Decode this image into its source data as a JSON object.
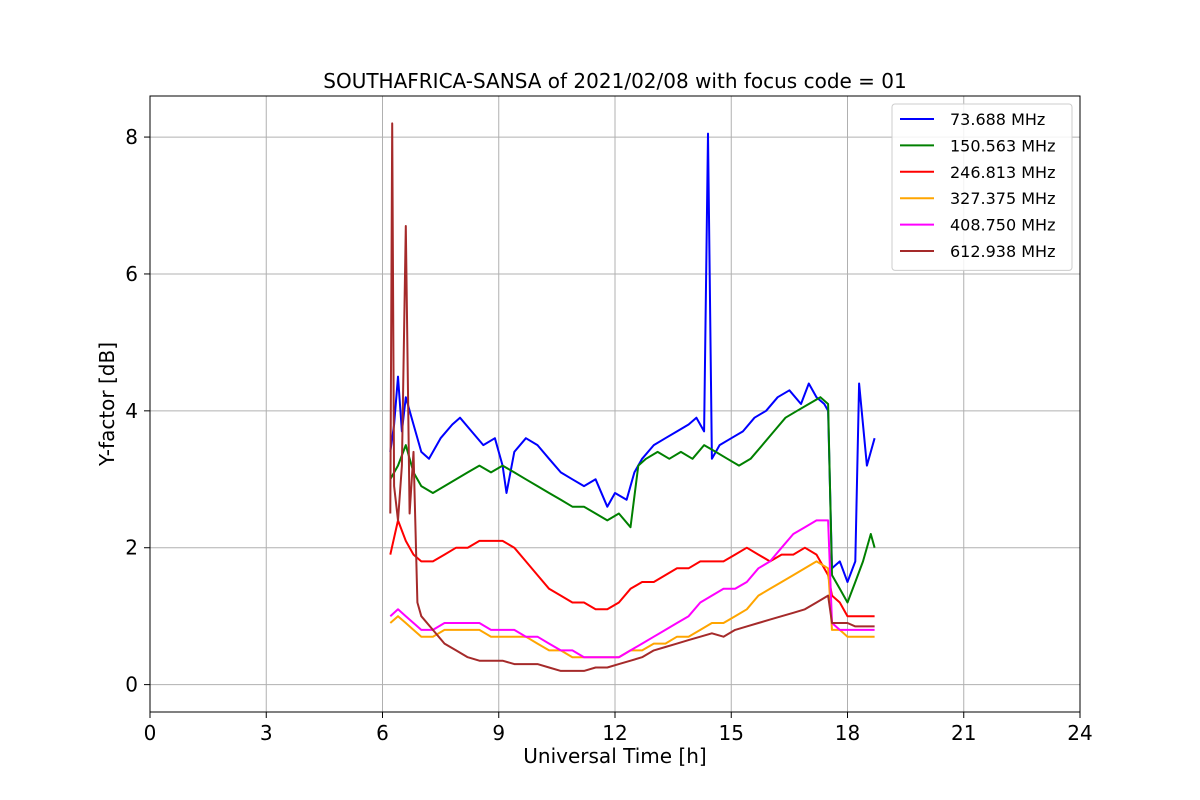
{
  "chart_data": {
    "type": "line",
    "title": "SOUTHAFRICA-SANSA of 2021/02/08 with focus code = 01",
    "xlabel": "Universal Time [h]",
    "ylabel": "Y-factor [dB]",
    "xlim": [
      0,
      24
    ],
    "ylim": [
      -0.4,
      8.6
    ],
    "xticks": [
      0,
      3,
      6,
      9,
      12,
      15,
      18,
      21,
      24
    ],
    "yticks": [
      0,
      2,
      4,
      6,
      8
    ],
    "xtick_labels": [
      "0",
      "3",
      "6",
      "9",
      "12",
      "15",
      "18",
      "21",
      "24"
    ],
    "ytick_labels": [
      "0",
      "2",
      "4",
      "6",
      "8"
    ],
    "grid": true,
    "legend_position": "top-right",
    "series": [
      {
        "name": " 73.688 MHz",
        "color": "#0000ff",
        "x": [
          6.2,
          6.3,
          6.4,
          6.5,
          6.6,
          6.8,
          7.0,
          7.2,
          7.5,
          7.8,
          8.0,
          8.3,
          8.6,
          8.9,
          9.1,
          9.2,
          9.4,
          9.7,
          10.0,
          10.3,
          10.6,
          10.9,
          11.2,
          11.5,
          11.8,
          12.0,
          12.3,
          12.5,
          12.7,
          13.0,
          13.3,
          13.6,
          13.9,
          14.1,
          14.3,
          14.4,
          14.5,
          14.7,
          15.0,
          15.3,
          15.6,
          15.9,
          16.2,
          16.5,
          16.8,
          17.0,
          17.2,
          17.4,
          17.5,
          17.6,
          17.8,
          18.0,
          18.2,
          18.3,
          18.5,
          18.7
        ],
        "y": [
          3.4,
          3.8,
          4.5,
          3.7,
          4.2,
          3.8,
          3.4,
          3.3,
          3.6,
          3.8,
          3.9,
          3.7,
          3.5,
          3.6,
          3.2,
          2.8,
          3.4,
          3.6,
          3.5,
          3.3,
          3.1,
          3.0,
          2.9,
          3.0,
          2.6,
          2.8,
          2.7,
          3.1,
          3.3,
          3.5,
          3.6,
          3.7,
          3.8,
          3.9,
          3.7,
          8.05,
          3.3,
          3.5,
          3.6,
          3.7,
          3.9,
          4.0,
          4.2,
          4.3,
          4.1,
          4.4,
          4.2,
          4.1,
          4.0,
          1.7,
          1.8,
          1.5,
          1.8,
          4.4,
          3.2,
          3.6
        ]
      },
      {
        "name": "150.563 MHz",
        "color": "#008000",
        "x": [
          6.2,
          6.4,
          6.6,
          6.8,
          7.0,
          7.3,
          7.6,
          7.9,
          8.2,
          8.5,
          8.8,
          9.1,
          9.4,
          9.7,
          10.0,
          10.3,
          10.6,
          10.9,
          11.2,
          11.5,
          11.8,
          12.1,
          12.4,
          12.6,
          12.8,
          13.1,
          13.4,
          13.7,
          14.0,
          14.3,
          14.6,
          14.9,
          15.2,
          15.5,
          15.8,
          16.1,
          16.4,
          16.7,
          17.0,
          17.3,
          17.5,
          17.6,
          17.8,
          18.0,
          18.2,
          18.4,
          18.6,
          18.7
        ],
        "y": [
          3.0,
          3.2,
          3.5,
          3.1,
          2.9,
          2.8,
          2.9,
          3.0,
          3.1,
          3.2,
          3.1,
          3.2,
          3.1,
          3.0,
          2.9,
          2.8,
          2.7,
          2.6,
          2.6,
          2.5,
          2.4,
          2.5,
          2.3,
          3.2,
          3.3,
          3.4,
          3.3,
          3.4,
          3.3,
          3.5,
          3.4,
          3.3,
          3.2,
          3.3,
          3.5,
          3.7,
          3.9,
          4.0,
          4.1,
          4.2,
          4.1,
          1.6,
          1.4,
          1.2,
          1.5,
          1.8,
          2.2,
          2.0
        ]
      },
      {
        "name": "246.813 MHz",
        "color": "#ff0000",
        "x": [
          6.2,
          6.4,
          6.6,
          6.8,
          7.0,
          7.3,
          7.6,
          7.9,
          8.2,
          8.5,
          8.8,
          9.1,
          9.4,
          9.7,
          10.0,
          10.3,
          10.6,
          10.9,
          11.2,
          11.5,
          11.8,
          12.1,
          12.4,
          12.7,
          13.0,
          13.3,
          13.6,
          13.9,
          14.2,
          14.5,
          14.8,
          15.1,
          15.4,
          15.7,
          16.0,
          16.3,
          16.6,
          16.9,
          17.2,
          17.5,
          17.6,
          17.8,
          18.0,
          18.2,
          18.4,
          18.7
        ],
        "y": [
          1.9,
          2.4,
          2.1,
          1.9,
          1.8,
          1.8,
          1.9,
          2.0,
          2.0,
          2.1,
          2.1,
          2.1,
          2.0,
          1.8,
          1.6,
          1.4,
          1.3,
          1.2,
          1.2,
          1.1,
          1.1,
          1.2,
          1.4,
          1.5,
          1.5,
          1.6,
          1.7,
          1.7,
          1.8,
          1.8,
          1.8,
          1.9,
          2.0,
          1.9,
          1.8,
          1.9,
          1.9,
          2.0,
          1.9,
          1.6,
          1.3,
          1.2,
          1.0,
          1.0,
          1.0,
          1.0
        ]
      },
      {
        "name": "327.375 MHz",
        "color": "#ffa500",
        "x": [
          6.2,
          6.4,
          6.6,
          6.8,
          7.0,
          7.3,
          7.6,
          7.9,
          8.2,
          8.5,
          8.8,
          9.1,
          9.4,
          9.7,
          10.0,
          10.3,
          10.6,
          10.9,
          11.2,
          11.5,
          11.8,
          12.1,
          12.4,
          12.7,
          13.0,
          13.3,
          13.6,
          13.9,
          14.2,
          14.5,
          14.8,
          15.1,
          15.4,
          15.7,
          16.0,
          16.3,
          16.6,
          16.9,
          17.2,
          17.5,
          17.6,
          17.8,
          18.0,
          18.2,
          18.4,
          18.7
        ],
        "y": [
          0.9,
          1.0,
          0.9,
          0.8,
          0.7,
          0.7,
          0.8,
          0.8,
          0.8,
          0.8,
          0.7,
          0.7,
          0.7,
          0.7,
          0.6,
          0.5,
          0.5,
          0.4,
          0.4,
          0.4,
          0.4,
          0.4,
          0.5,
          0.5,
          0.6,
          0.6,
          0.7,
          0.7,
          0.8,
          0.9,
          0.9,
          1.0,
          1.1,
          1.3,
          1.4,
          1.5,
          1.6,
          1.7,
          1.8,
          1.7,
          0.8,
          0.8,
          0.7,
          0.7,
          0.7,
          0.7
        ]
      },
      {
        "name": "408.750 MHz",
        "color": "#ff00ff",
        "x": [
          6.2,
          6.4,
          6.6,
          6.8,
          7.0,
          7.3,
          7.6,
          7.9,
          8.2,
          8.5,
          8.8,
          9.1,
          9.4,
          9.7,
          10.0,
          10.3,
          10.6,
          10.9,
          11.2,
          11.5,
          11.8,
          12.1,
          12.4,
          12.7,
          13.0,
          13.3,
          13.6,
          13.9,
          14.2,
          14.5,
          14.8,
          15.1,
          15.4,
          15.7,
          16.0,
          16.3,
          16.6,
          16.9,
          17.2,
          17.5,
          17.6,
          17.8,
          18.0,
          18.2,
          18.4,
          18.7
        ],
        "y": [
          1.0,
          1.1,
          1.0,
          0.9,
          0.8,
          0.8,
          0.9,
          0.9,
          0.9,
          0.9,
          0.8,
          0.8,
          0.8,
          0.7,
          0.7,
          0.6,
          0.5,
          0.5,
          0.4,
          0.4,
          0.4,
          0.4,
          0.5,
          0.6,
          0.7,
          0.8,
          0.9,
          1.0,
          1.2,
          1.3,
          1.4,
          1.4,
          1.5,
          1.7,
          1.8,
          2.0,
          2.2,
          2.3,
          2.4,
          2.4,
          0.9,
          0.8,
          0.8,
          0.8,
          0.8,
          0.8
        ]
      },
      {
        "name": "612.938 MHz",
        "color": "#a52a2a",
        "x": [
          6.2,
          6.25,
          6.3,
          6.4,
          6.5,
          6.6,
          6.7,
          6.8,
          6.9,
          7.0,
          7.3,
          7.6,
          7.9,
          8.2,
          8.5,
          8.8,
          9.1,
          9.4,
          9.7,
          10.0,
          10.3,
          10.6,
          10.9,
          11.2,
          11.5,
          11.8,
          12.1,
          12.4,
          12.7,
          13.0,
          13.3,
          13.6,
          13.9,
          14.2,
          14.5,
          14.8,
          15.1,
          15.4,
          15.7,
          16.0,
          16.3,
          16.6,
          16.9,
          17.2,
          17.5,
          17.6,
          17.8,
          18.0,
          18.2,
          18.4,
          18.7
        ],
        "y": [
          2.5,
          8.2,
          2.9,
          2.4,
          3.2,
          6.7,
          2.5,
          3.4,
          1.2,
          1.0,
          0.8,
          0.6,
          0.5,
          0.4,
          0.35,
          0.35,
          0.35,
          0.3,
          0.3,
          0.3,
          0.25,
          0.2,
          0.2,
          0.2,
          0.25,
          0.25,
          0.3,
          0.35,
          0.4,
          0.5,
          0.55,
          0.6,
          0.65,
          0.7,
          0.75,
          0.7,
          0.8,
          0.85,
          0.9,
          0.95,
          1.0,
          1.05,
          1.1,
          1.2,
          1.3,
          0.9,
          0.9,
          0.9,
          0.85,
          0.85,
          0.85
        ]
      }
    ]
  }
}
